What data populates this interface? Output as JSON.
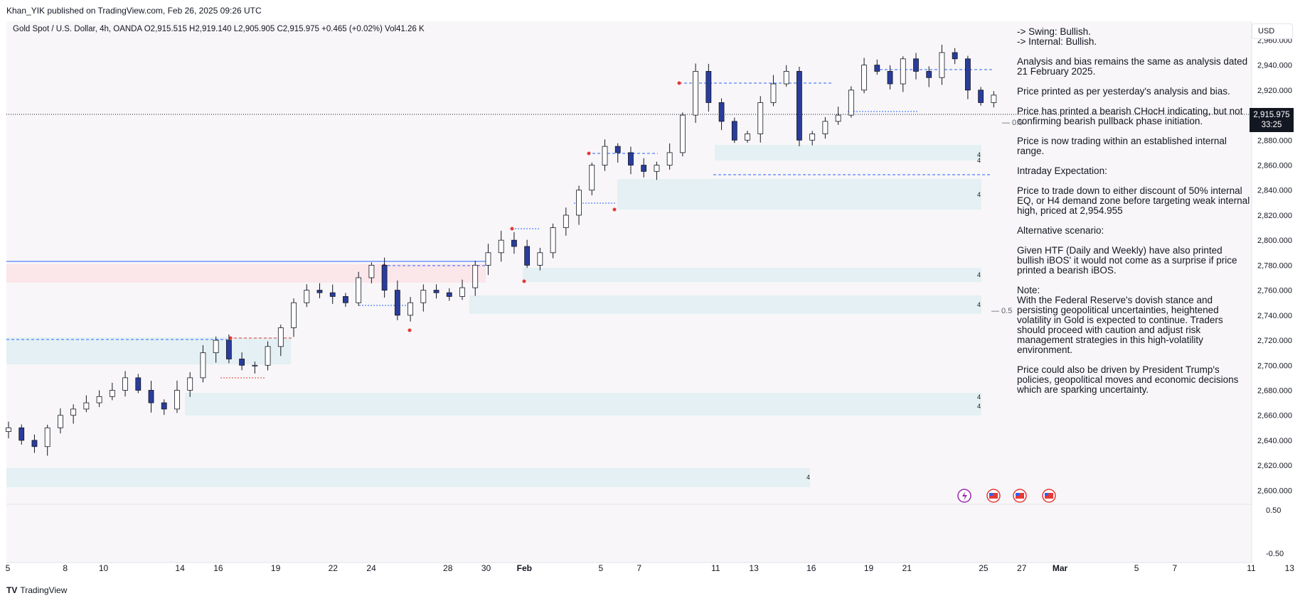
{
  "published": "Khan_YIK published on TradingView.com, Feb 26, 2025 09:26 UTC",
  "legend": {
    "symbol": "Gold Spot / U.S. Dollar, 4h, OANDA",
    "open": "O2,915.515",
    "high": "H2,919.140",
    "low": "L2,905.905",
    "close": "C2,915.975",
    "change": "+0.465 (+0.02%)",
    "volume": "Vol41.26 K"
  },
  "currency_button": "USD",
  "last_price": "2,915.975",
  "countdown": "33:25",
  "notes": [
    "-> Swing:  Bullish.\n-> Internal:  Bullish.",
    "Analysis and bias remains the same as analysis dated 21 February 2025.",
    "Price printed as per yesterday's analysis and bias.",
    "Price has printed a bearish CHocH indicating, but not confirming bearish pullback phase initiation.",
    "Price is now trading within an established internal range.",
    "Intraday Expectation:",
    "Price to trade down to either discount of 50% internal EQ, or H4 demand zone before targeting weak internal high, priced at 2,954.955",
    "Alternative scenario:",
    "Given HTF (Daily and Weekly) have also printed bullish iBOS' it would not come as a surprise if price printed a bearish iBOS.",
    "Note:\nWith the Federal Reserve's dovish stance and persisting geopolitical uncertainties, heightened volatility in Gold is expected to continue. Traders should proceed with caution and adjust risk management strategies in this high-volatility environment.",
    "Price could also be driven by President Trump's policies, geopolitical moves and economic decisions which are sparking uncertainty."
  ],
  "footer_brand": "TradingView",
  "chart_data": {
    "type": "candlestick",
    "interval": "4h",
    "y_ticks": [
      2600,
      2620,
      2640,
      2660,
      2680,
      2700,
      2720,
      2740,
      2760,
      2780,
      2800,
      2820,
      2840,
      2860,
      2880,
      2900,
      2920,
      2940,
      2960
    ],
    "y_tick_labels": [
      "2,600.000",
      "2,620.000",
      "2,640.000",
      "2,660.000",
      "2,680.000",
      "2,700.000",
      "2,720.000",
      "2,740.000",
      "2,760.000",
      "2,780.000",
      "2,800.000",
      "2,820.000",
      "2,840.000",
      "2,860.000",
      "2,880.000",
      "2,900.000",
      "2,920.000",
      "2,940.000",
      "2,960.000"
    ],
    "x_labels": [
      "5",
      "8",
      "10",
      "14",
      "16",
      "19",
      "22",
      "24",
      "28",
      "30",
      "Feb",
      "5",
      "7",
      "11",
      "13",
      "16",
      "19",
      "21",
      "25",
      "27",
      "Mar",
      "5",
      "7",
      "11",
      "13"
    ],
    "x_label_day_index": [
      0,
      3,
      5,
      9,
      11,
      14,
      17,
      19,
      23,
      25,
      27,
      31,
      33,
      37,
      39,
      42,
      45,
      47,
      51,
      53,
      55,
      59,
      61,
      65,
      67
    ],
    "close_series": [
      2650,
      2640,
      2635,
      2650,
      2660,
      2665,
      2670,
      2675,
      2680,
      2690,
      2680,
      2670,
      2665,
      2680,
      2690,
      2710,
      2720,
      2705,
      2700,
      2700,
      2715,
      2730,
      2750,
      2760,
      2758,
      2755,
      2750,
      2770,
      2780,
      2760,
      2740,
      2750,
      2760,
      2758,
      2755,
      2762,
      2780,
      2790,
      2800,
      2795,
      2780,
      2790,
      2810,
      2820,
      2840,
      2860,
      2875,
      2870,
      2860,
      2855,
      2860,
      2870,
      2900,
      2935,
      2910,
      2895,
      2880,
      2885,
      2910,
      2925,
      2935,
      2880,
      2885,
      2895,
      2900,
      2920,
      2940,
      2935,
      2925,
      2945,
      2935,
      2930,
      2950,
      2945,
      2920,
      2910,
      2916
    ],
    "candle_day_span": [
      0,
      51.5
    ],
    "indicator_ticks": [
      "0.50",
      "-0.50"
    ],
    "range_labels": [
      "0.5",
      "0.5"
    ],
    "zone_labels": [
      "4",
      "4",
      "4",
      "4",
      "4",
      "4",
      "4",
      "4"
    ],
    "y_min": 2590,
    "y_max": 2975
  }
}
